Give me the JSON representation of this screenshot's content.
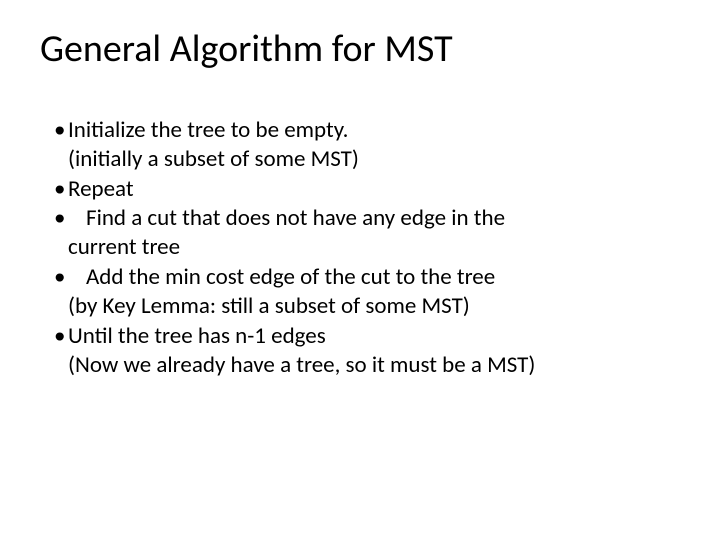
{
  "title": "General Algorithm for MST",
  "bullets": {
    "b1_line1": "Initialize the tree to be empty.",
    "b1_line2": "(initially a subset of some MST)",
    "b2": "Repeat",
    "b3_line1": "Find a cut that does not have any edge in the",
    "b3_line2": "current tree",
    "b4_line1": "Add the min cost edge of the cut to the tree",
    "b4_line2": "(by Key Lemma: still a subset of some MST)",
    "b5_line1": "Until the tree has n-1 edges",
    "b5_line2": "(Now we already have a tree, so it must be a MST)"
  },
  "style": {
    "background_color": "#ffffff",
    "text_color": "#000000",
    "title_fontsize": 38,
    "body_fontsize": 23,
    "font_family": "Calibri"
  }
}
